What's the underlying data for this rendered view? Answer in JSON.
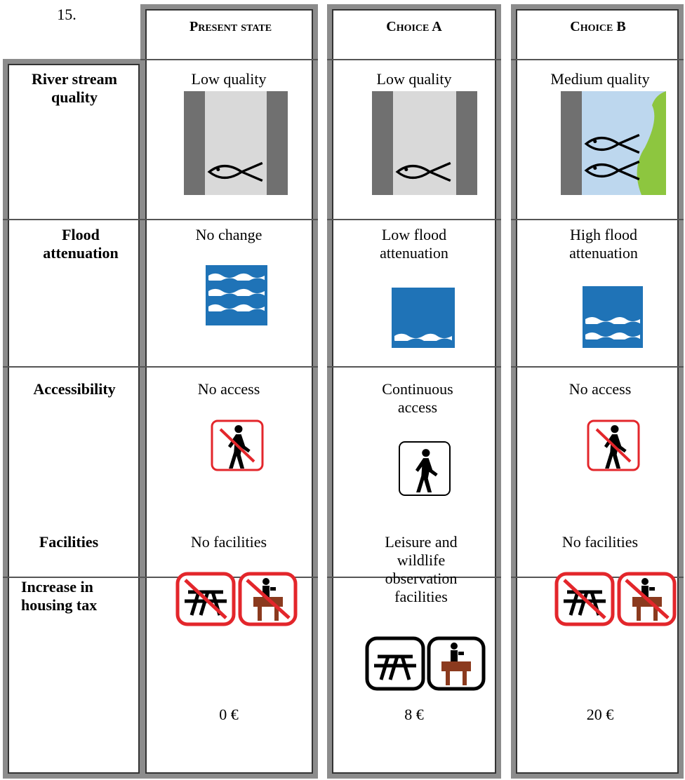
{
  "question_number": "15.",
  "columns": [
    "Present state",
    "Choice A",
    "Choice B"
  ],
  "rows": [
    {
      "label": "River stream quality",
      "cells": [
        "Low quality",
        "Low quality",
        "Medium quality"
      ]
    },
    {
      "label": "Flood attenuation",
      "cells": [
        "No change",
        "Low flood attenuation",
        "High flood attenuation"
      ]
    },
    {
      "label": "Accessibility",
      "cells": [
        "No access",
        "Continuous access",
        "No access"
      ]
    },
    {
      "label": "Facilities",
      "cells": [
        "No facilities",
        "Leisure and wildlife observation facilities",
        "No facilities"
      ]
    },
    {
      "label": "Increase in housing tax",
      "cells": [
        "0 €",
        "8 €",
        "20 €"
      ]
    }
  ]
}
